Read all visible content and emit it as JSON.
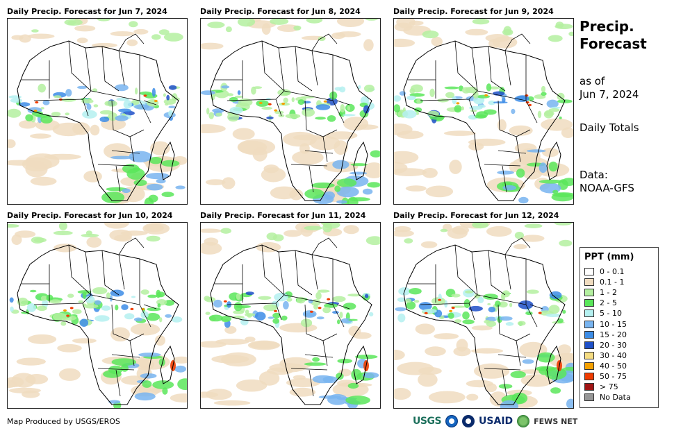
{
  "panels": [
    {
      "title": "Daily Precip. Forecast for Jun 7, 2024"
    },
    {
      "title": "Daily Precip. Forecast for Jun 8, 2024"
    },
    {
      "title": "Daily Precip. Forecast for Jun 9, 2024"
    },
    {
      "title": "Daily Precip. Forecast for Jun 10, 2024"
    },
    {
      "title": "Daily Precip. Forecast for Jun 11, 2024"
    },
    {
      "title": "Daily Precip. Forecast for Jun 12, 2024"
    }
  ],
  "side": {
    "title_line1": "Precip.",
    "title_line2": "Forecast",
    "asof_line1": "as of",
    "asof_line2": "Jun 7, 2024",
    "totals": "Daily Totals",
    "data_line1": "Data:",
    "data_line2": "NOAA-GFS"
  },
  "legend": {
    "title": "PPT (mm)",
    "items": [
      {
        "label": "0 - 0.1",
        "color": "#ffffff"
      },
      {
        "label": "0.1 - 1",
        "color": "#f0dcc0"
      },
      {
        "label": "1 - 2",
        "color": "#b4f0a0"
      },
      {
        "label": "2 - 5",
        "color": "#5ae65a"
      },
      {
        "label": "5 - 10",
        "color": "#b4f0f0"
      },
      {
        "label": "10 - 15",
        "color": "#78b4f0"
      },
      {
        "label": "15 - 20",
        "color": "#3c8ce6"
      },
      {
        "label": "20 - 30",
        "color": "#1e50c8"
      },
      {
        "label": "30 - 40",
        "color": "#f5dc82"
      },
      {
        "label": "40 - 50",
        "color": "#f5a000"
      },
      {
        "label": "50 - 75",
        "color": "#f03c00"
      },
      {
        "label": "> 75",
        "color": "#a01414"
      },
      {
        "label": "No Data",
        "color": "#969696"
      }
    ]
  },
  "credit": "Map Produced by USGS/EROS",
  "logos": {
    "usgs": "USGS",
    "usaid": "USAID",
    "fews": "FEWS NET"
  }
}
